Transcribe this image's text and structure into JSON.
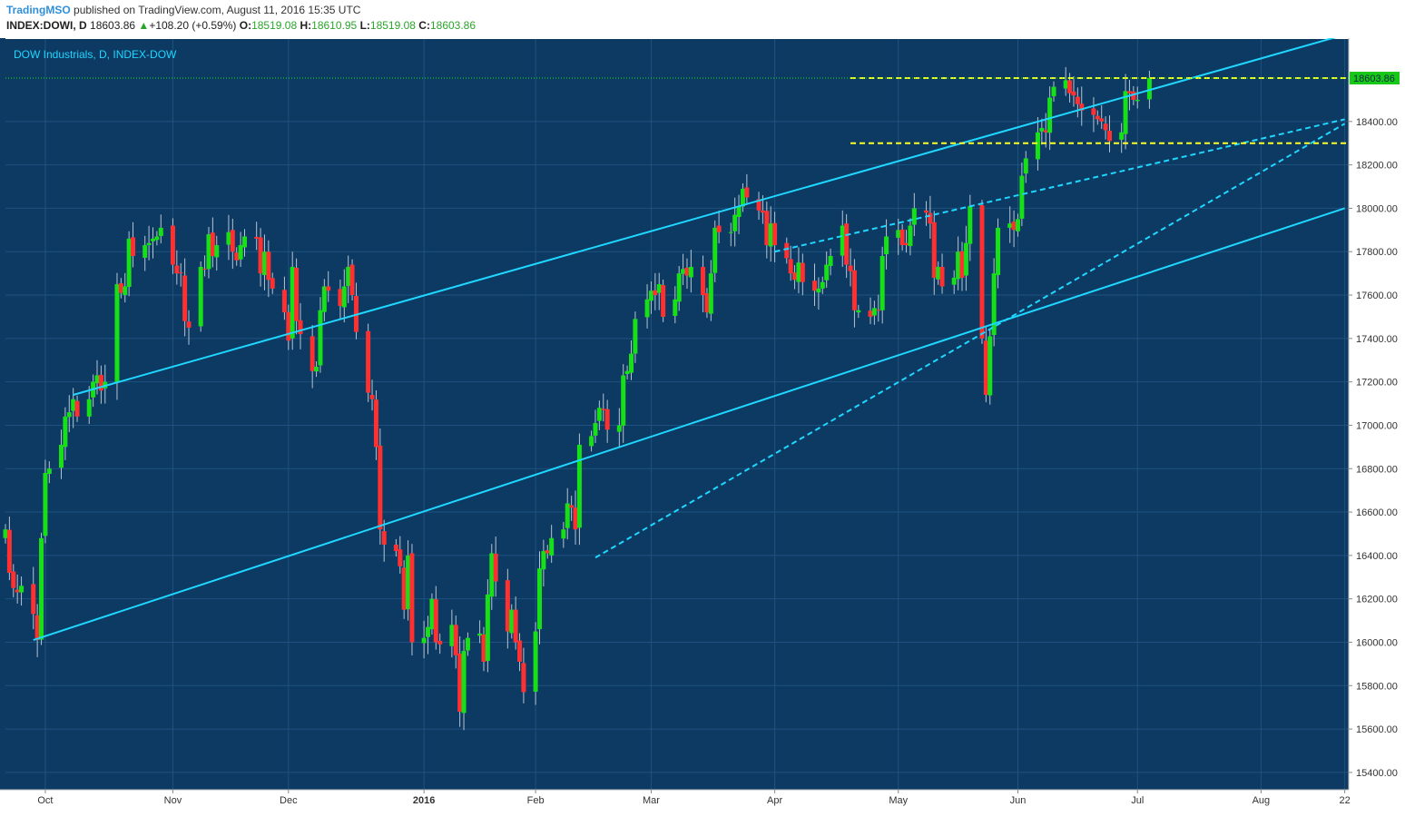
{
  "header": {
    "author": "TradingMSO",
    "published": "published on TradingView.com, August 11, 2016 15:35 UTC",
    "symbol": "INDEX:DOWI, D",
    "last": "18603.86",
    "change_arrow": "▲",
    "change": "+108.20 (+0.59%)",
    "open_label": "O:",
    "open": "18519.08",
    "high_label": "H:",
    "high": "18610.95",
    "low_label": "L:",
    "low": "18519.08",
    "close_label": "C:",
    "close": "18603.86"
  },
  "colors": {
    "background": "#0c3a63",
    "grid": "#1f5280",
    "up": "#18e018",
    "down": "#ff3030",
    "wick": "#b8c4d0",
    "channel": "#1fd7ff",
    "support_dashed": "#1fd7ff",
    "level": "#ffff20",
    "price_tag": "#18c818"
  },
  "chart_data": {
    "type": "candlestick",
    "title": "DOW Industrials, D, INDEX-DOW",
    "last_price_label": "18603.86",
    "ylim": [
      15320,
      18780
    ],
    "y_ticks": [
      15400,
      15600,
      15800,
      16000,
      16200,
      16400,
      16600,
      16800,
      17000,
      17200,
      17400,
      17600,
      17800,
      18000,
      18200,
      18400
    ],
    "y_tick_labels": [
      "15400.00",
      "15600.00",
      "15800.00",
      "16000.00",
      "16200.00",
      "16400.00",
      "16600.00",
      "16800.00",
      "17000.00",
      "17200.00",
      "17400.00",
      "17600.00",
      "17800.00",
      "18000.00",
      "18200.00",
      "18400.00"
    ],
    "x_tick_labels": [
      {
        "label": "Oct",
        "date": "2015-10-01"
      },
      {
        "label": "Nov",
        "date": "2015-11-02"
      },
      {
        "label": "Dec",
        "date": "2015-12-01"
      },
      {
        "label": "2016",
        "date": "2016-01-04",
        "bold": true
      },
      {
        "label": "Feb",
        "date": "2016-02-01"
      },
      {
        "label": "Mar",
        "date": "2016-03-01"
      },
      {
        "label": "Apr",
        "date": "2016-04-01"
      },
      {
        "label": "May",
        "date": "2016-05-02"
      },
      {
        "label": "Jun",
        "date": "2016-06-01"
      },
      {
        "label": "Jul",
        "date": "2016-07-01"
      },
      {
        "label": "Aug",
        "date": "2016-08-01"
      },
      {
        "label": "22",
        "date": "2016-08-22"
      }
    ],
    "start_date": "2015-09-21",
    "end_date": "2016-08-23",
    "closes": [
      16520,
      16320,
      16250,
      16230,
      16260,
      16130,
      16010,
      16480,
      16780,
      16800,
      16910,
      17040,
      17060,
      17120,
      17040,
      17120,
      17200,
      17230,
      17160,
      17200,
      17650,
      17610,
      17640,
      17860,
      17780,
      17830,
      17840,
      17860,
      17870,
      17910,
      17740,
      17700,
      17700,
      17480,
      17450,
      17730,
      17720,
      17880,
      17780,
      17830,
      17890,
      17800,
      17760,
      17830,
      17870,
      17860,
      17700,
      17800,
      17670,
      17630,
      17520,
      17390,
      17730,
      17480,
      17420,
      17250,
      17270,
      17530,
      17640,
      17620,
      17550,
      17640,
      17730,
      17600,
      17430,
      17150,
      17120,
      16900,
      16520,
      16450,
      16420,
      16350,
      16150,
      16400,
      16000,
      16020,
      16070,
      16200,
      16000,
      15990,
      16080,
      15940,
      15680,
      15960,
      16020,
      16040,
      15910,
      16220,
      16410,
      16280,
      16050,
      16150,
      16000,
      15910,
      15770,
      16050,
      16340,
      16420,
      16410,
      16480,
      16520,
      16640,
      16620,
      16520,
      16910,
      16950,
      17010,
      17080,
      17070,
      16980,
      17000,
      17230,
      17250,
      17330,
      17490,
      17580,
      17620,
      17600,
      17650,
      17500,
      17580,
      17700,
      17720,
      17690,
      17730,
      17600,
      17520,
      17700,
      17910,
      17890,
      17890,
      17970,
      18010,
      18090,
      18050,
      17990,
      17980,
      17830,
      17930,
      17830,
      17770,
      17700,
      17670,
      17750,
      17660,
      17620,
      17630,
      17660,
      17740,
      17780,
      17920,
      17740,
      17710,
      17530,
      17530,
      17500,
      17540,
      17530,
      17780,
      17870,
      17900,
      17830,
      17830,
      17920,
      18000,
      17980,
      17930,
      17680,
      17730,
      17640,
      17680,
      17800,
      17680,
      17840,
      18010,
      17400,
      17140,
      17410,
      17700,
      17910,
      17930,
      17900,
      17950,
      18150,
      18230,
      18350,
      18370,
      18350,
      18510,
      18560,
      18590,
      18530,
      18520,
      18480,
      18450,
      18430,
      18410,
      18400,
      18360,
      18310,
      18350,
      18540,
      18530,
      18500,
      18500,
      18600
    ],
    "channel_upper": {
      "from": [
        "2015-10-08",
        17140
      ],
      "to": [
        "2016-08-22",
        18800
      ],
      "style": "solid"
    },
    "channel_lower": {
      "from": [
        "2015-09-28",
        16010
      ],
      "to": [
        "2016-08-22",
        18000
      ],
      "style": "solid"
    },
    "trend_dashed_upper": {
      "from": [
        "2016-04-01",
        17800
      ],
      "to": [
        "2016-08-22",
        18410
      ],
      "style": "dashed"
    },
    "trend_dashed_lower": {
      "from": [
        "2016-02-16",
        16390
      ],
      "to": [
        "2016-08-22",
        18390
      ],
      "style": "dashed"
    },
    "level_high": {
      "value": 18600,
      "from": "2016-04-20",
      "style": "dashed"
    },
    "level_low": {
      "value": 18300,
      "from": "2016-04-20",
      "style": "dashed"
    }
  }
}
